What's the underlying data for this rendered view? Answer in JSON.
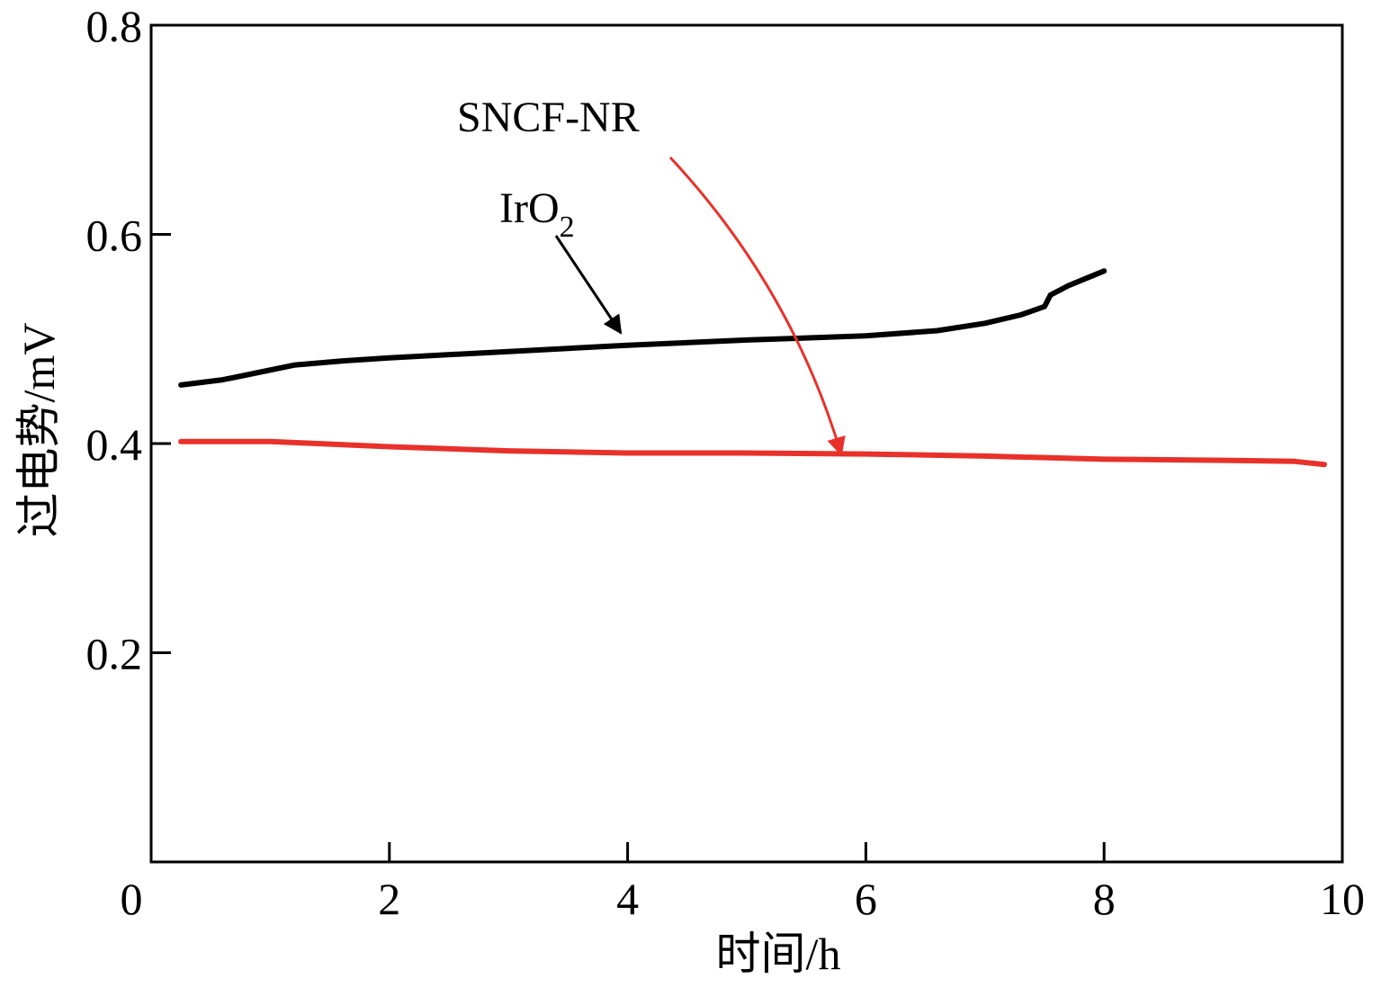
{
  "chart_data": {
    "type": "line",
    "xlabel": "时间/h",
    "ylabel": "过电势/mV",
    "xlim": [
      0,
      10
    ],
    "ylim": [
      0,
      0.8
    ],
    "x_ticks": [
      0,
      2,
      4,
      6,
      8,
      10
    ],
    "x_tick_labels": [
      "0",
      "2",
      "4",
      "6",
      "8",
      "10"
    ],
    "y_ticks": [
      0.2,
      0.4,
      0.6,
      0.8
    ],
    "y_tick_labels": [
      "0.2",
      "0.4",
      "0.6",
      "0.8"
    ],
    "grid": false,
    "series": [
      {
        "name": "IrO2",
        "color": "#000000",
        "x": [
          0.25,
          0.6,
          0.9,
          1.2,
          1.6,
          2.0,
          3.0,
          4.0,
          5.0,
          6.0,
          6.6,
          7.0,
          7.3,
          7.5,
          7.55,
          7.7,
          8.0
        ],
        "y": [
          0.456,
          0.461,
          0.468,
          0.475,
          0.479,
          0.482,
          0.488,
          0.494,
          0.499,
          0.503,
          0.508,
          0.515,
          0.523,
          0.531,
          0.542,
          0.551,
          0.565
        ]
      },
      {
        "name": "SNCF-NR",
        "color": "#e8312a",
        "x": [
          0.25,
          1.0,
          2.0,
          3.0,
          4.0,
          5.0,
          6.0,
          7.0,
          8.0,
          9.0,
          9.6,
          9.85
        ],
        "y": [
          0.402,
          0.402,
          0.397,
          0.393,
          0.391,
          0.391,
          0.39,
          0.388,
          0.385,
          0.384,
          0.383,
          0.38
        ]
      }
    ],
    "annotations": [
      {
        "text_main": "IrO",
        "text_sub": "2",
        "series": "IrO2",
        "color": "#000000"
      },
      {
        "text_main": "SNCF-NR",
        "series": "SNCF-NR",
        "color": "#e8312a"
      }
    ]
  }
}
